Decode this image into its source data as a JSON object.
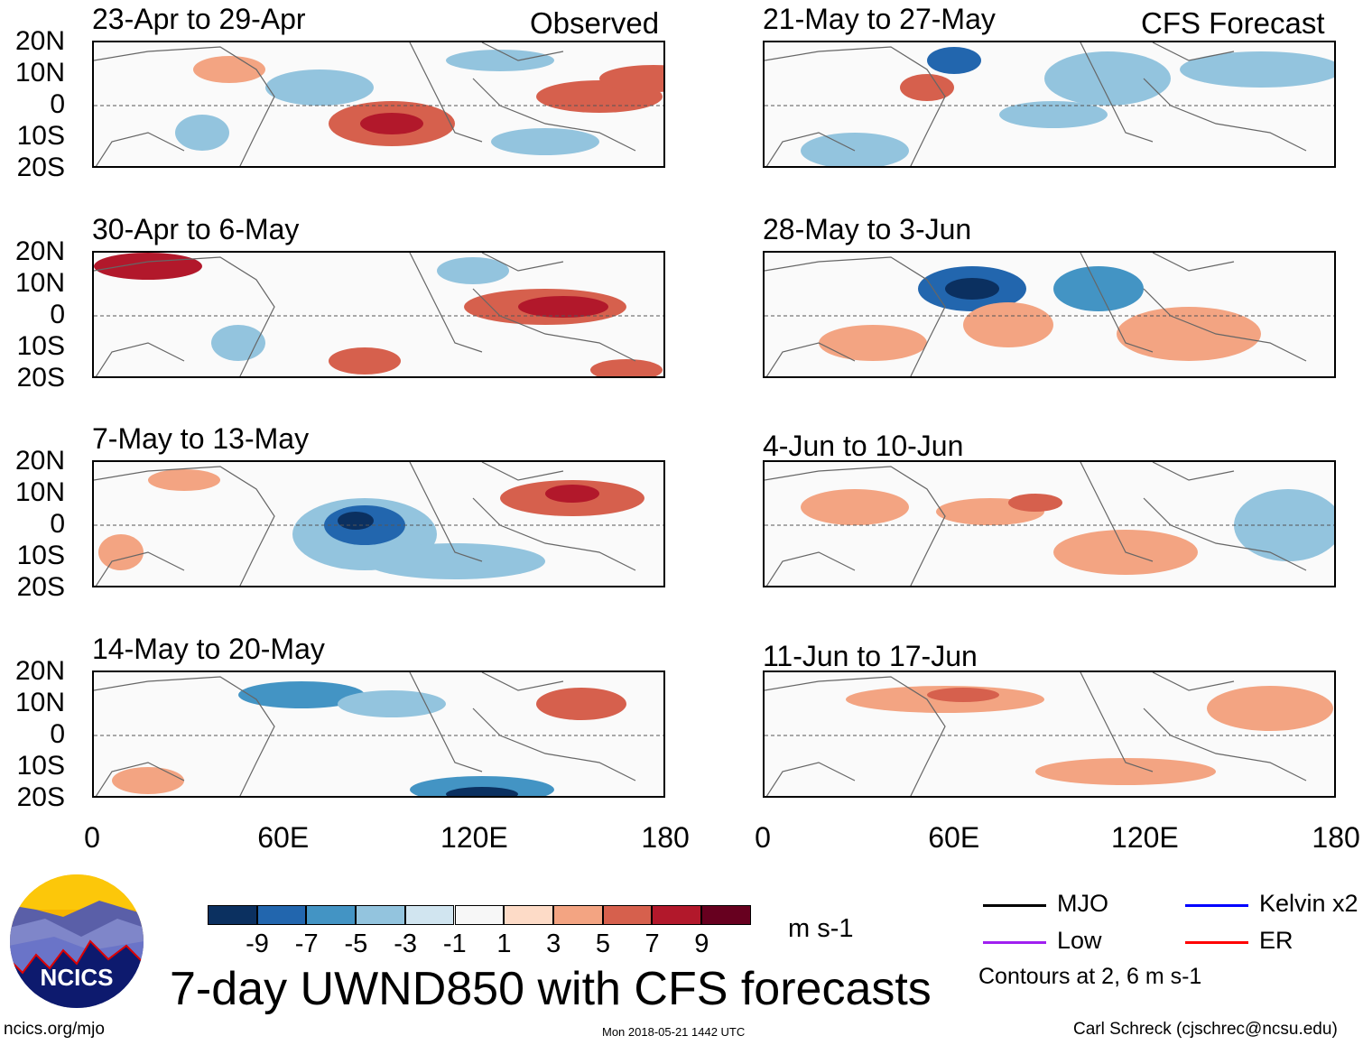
{
  "header": {
    "observed_label": "Observed",
    "forecast_label": "CFS Forecast"
  },
  "observed_panels": [
    {
      "title": "23-Apr to 29-Apr"
    },
    {
      "title": "30-Apr to 6-May"
    },
    {
      "title": "7-May to 13-May"
    },
    {
      "title": "14-May to 20-May"
    }
  ],
  "forecast_panels": [
    {
      "title": "21-May to 27-May"
    },
    {
      "title": "28-May to 3-Jun"
    },
    {
      "title": "4-Jun to 10-Jun"
    },
    {
      "title": "11-Jun to 17-Jun"
    }
  ],
  "lat_labels": [
    "20N",
    "10N",
    "0",
    "10S",
    "20S"
  ],
  "lon_labels": [
    "0",
    "60E",
    "120E",
    "180"
  ],
  "colorbar": {
    "labels": [
      "-9",
      "-7",
      "-5",
      "-3",
      "-1",
      "1",
      "3",
      "5",
      "7",
      "9"
    ],
    "colors": [
      "#0b3060",
      "#2266ae",
      "#4394c4",
      "#93c4de",
      "#d1e5f0",
      "#f7f7f7",
      "#fddbc7",
      "#f3a482",
      "#d6604d",
      "#b2182b",
      "#67001f"
    ],
    "units": "m s-1"
  },
  "legend": {
    "items": [
      {
        "label": "MJO",
        "color": "#000000"
      },
      {
        "label": "Kelvin x2",
        "color": "#0000ff"
      },
      {
        "label": "Low",
        "color": "#a020f0"
      },
      {
        "label": "ER",
        "color": "#ff0000"
      }
    ],
    "note": "Contours at 2, 6 m s-1"
  },
  "title": "7-day UWND850 with CFS forecasts",
  "logo_text": "NCICS",
  "footer": {
    "url": "ncics.org/mjo",
    "timestamp": "Mon 2018-05-21 1442 UTC",
    "author": "Carl Schreck (cjschrec@ncsu.edu)"
  }
}
